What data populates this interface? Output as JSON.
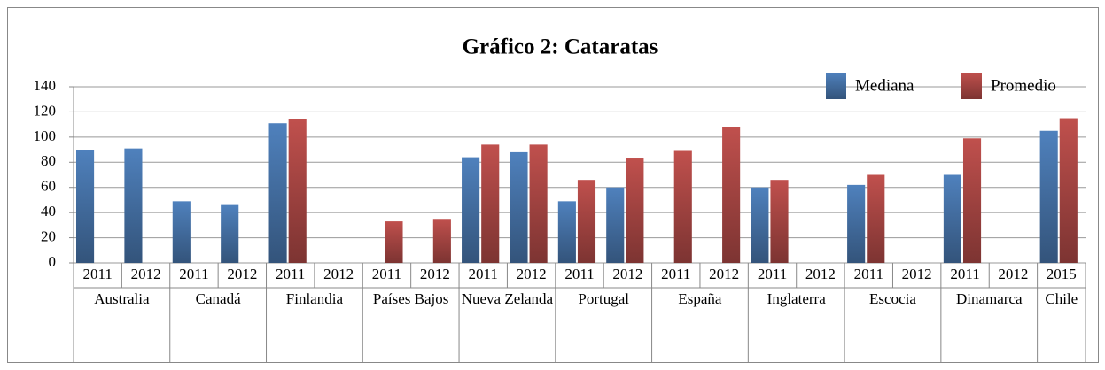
{
  "chart_data": {
    "type": "bar",
    "title": "Gráfico 2: Cataratas",
    "groups": [
      {
        "name": "Australia",
        "categories": [
          "2011",
          "2012"
        ]
      },
      {
        "name": "Canadá",
        "categories": [
          "2011",
          "2012"
        ]
      },
      {
        "name": "Finlandia",
        "categories": [
          "2011",
          "2012"
        ]
      },
      {
        "name": "Países Bajos",
        "categories": [
          "2011",
          "2012"
        ]
      },
      {
        "name": "Nueva Zelanda",
        "categories": [
          "2011",
          "2012"
        ]
      },
      {
        "name": "Portugal",
        "categories": [
          "2011",
          "2012"
        ]
      },
      {
        "name": "España",
        "categories": [
          "2011",
          "2012"
        ]
      },
      {
        "name": "Inglaterra",
        "categories": [
          "2011",
          "2012"
        ]
      },
      {
        "name": "Escocia",
        "categories": [
          "2011",
          "2012"
        ]
      },
      {
        "name": "Dinamarca",
        "categories": [
          "2011",
          "2012"
        ]
      },
      {
        "name": "Chile",
        "categories": [
          "2015"
        ]
      }
    ],
    "series": [
      {
        "name": "Mediana",
        "color": "#4f81bd",
        "values": [
          90,
          91,
          49,
          46,
          111,
          null,
          null,
          null,
          84,
          88,
          49,
          60,
          null,
          null,
          60,
          null,
          62,
          null,
          70,
          null,
          105
        ]
      },
      {
        "name": "Promedio",
        "color": "#c0504d",
        "values": [
          null,
          null,
          null,
          null,
          114,
          null,
          33,
          35,
          94,
          94,
          66,
          83,
          89,
          108,
          66,
          null,
          70,
          null,
          99,
          null,
          115
        ]
      }
    ],
    "ylim": [
      0,
      140
    ],
    "yticks": [
      0,
      20,
      40,
      60,
      80,
      100,
      120,
      140
    ],
    "grid": true,
    "legend": "top-right"
  }
}
